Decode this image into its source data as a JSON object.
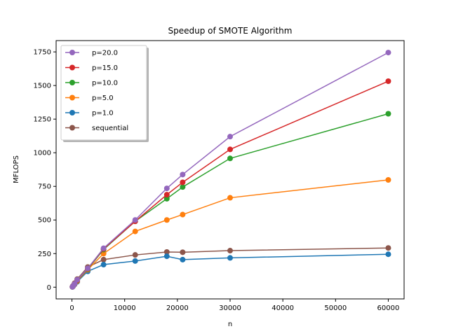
{
  "chart_data": {
    "type": "line",
    "title": "Speedup of SMOTE Algorithm",
    "xlabel": "n",
    "ylabel": "MFLOPS",
    "xlim": [
      -3000,
      63000
    ],
    "ylim": [
      -87,
      1834
    ],
    "xticks": [
      0,
      10000,
      20000,
      30000,
      40000,
      50000,
      60000
    ],
    "yticks": [
      0,
      250,
      500,
      750,
      1000,
      1250,
      1500,
      1750
    ],
    "grid": false,
    "legend_position": "top-left",
    "x": [
      100,
      200,
      500,
      1000,
      3000,
      6000,
      12000,
      18000,
      21000,
      30000,
      60000
    ],
    "series": [
      {
        "name": "p=20.0",
        "color": "#9467bd",
        "values": [
          3,
          8,
          25,
          55,
          140,
          290,
          500,
          735,
          838,
          1120,
          1745
        ]
      },
      {
        "name": "p=15.0",
        "color": "#d62728",
        "values": [
          3,
          8,
          25,
          52,
          138,
          285,
          490,
          688,
          780,
          1025,
          1532
        ]
      },
      {
        "name": "p=10.0",
        "color": "#2ca02c",
        "values": [
          3,
          8,
          24,
          50,
          135,
          280,
          490,
          658,
          745,
          958,
          1290
        ]
      },
      {
        "name": "p=5.0",
        "color": "#ff7f0e",
        "values": [
          3,
          7,
          22,
          45,
          130,
          250,
          415,
          500,
          540,
          665,
          798
        ]
      },
      {
        "name": "p=1.0",
        "color": "#1f77b4",
        "values": [
          2,
          6,
          20,
          40,
          118,
          168,
          195,
          230,
          205,
          218,
          245
        ]
      },
      {
        "name": "sequential",
        "color": "#8c564b",
        "values": [
          4,
          10,
          30,
          60,
          150,
          205,
          240,
          262,
          260,
          272,
          292
        ]
      }
    ]
  }
}
